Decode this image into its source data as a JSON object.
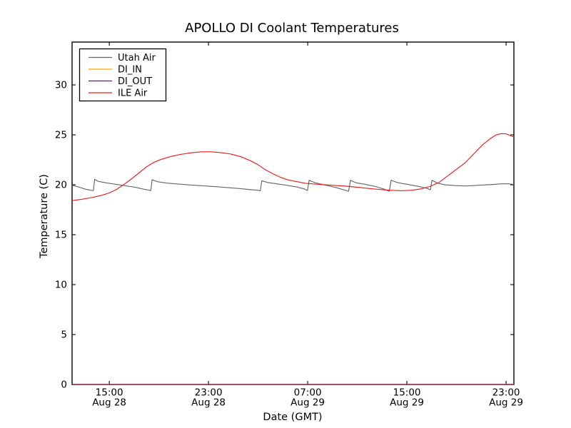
{
  "chart_data": {
    "type": "line",
    "title": "APOLLO DI Coolant Temperatures",
    "xlabel": "Date (GMT)",
    "ylabel": "Temperature (C)",
    "grid": false,
    "legend_position": "upper left",
    "x_unit": "hours since Aug 28 12:00 GMT",
    "xlim": [
      0,
      35.63
    ],
    "ylim": [
      0,
      34.29
    ],
    "y_ticks": [
      0,
      5,
      10,
      15,
      20,
      25,
      30
    ],
    "x_ticks": [
      {
        "h": 3,
        "time": "15:00",
        "date": "Aug 28"
      },
      {
        "h": 11,
        "time": "23:00",
        "date": "Aug 28"
      },
      {
        "h": 19,
        "time": "07:00",
        "date": "Aug 29"
      },
      {
        "h": 27,
        "time": "15:00",
        "date": "Aug 29"
      },
      {
        "h": 35,
        "time": "23:00",
        "date": "Aug 29"
      }
    ],
    "series": [
      {
        "name": "Utah Air",
        "color": "#666666",
        "points": [
          [
            0,
            19.95
          ],
          [
            0.6,
            19.75
          ],
          [
            1.1,
            19.55
          ],
          [
            1.5,
            19.45
          ],
          [
            1.72,
            19.42
          ],
          [
            1.82,
            20.55
          ],
          [
            2.1,
            20.35
          ],
          [
            2.7,
            20.2
          ],
          [
            3.5,
            20.05
          ],
          [
            4.3,
            19.9
          ],
          [
            5.1,
            19.75
          ],
          [
            5.8,
            19.55
          ],
          [
            6.25,
            19.45
          ],
          [
            6.35,
            19.42
          ],
          [
            6.45,
            20.5
          ],
          [
            6.9,
            20.3
          ],
          [
            7.6,
            20.18
          ],
          [
            8.5,
            20.08
          ],
          [
            9.5,
            19.98
          ],
          [
            10.5,
            19.9
          ],
          [
            11.5,
            19.82
          ],
          [
            12.5,
            19.72
          ],
          [
            13.5,
            19.62
          ],
          [
            14.3,
            19.52
          ],
          [
            15.0,
            19.45
          ],
          [
            15.18,
            19.4
          ],
          [
            15.3,
            20.4
          ],
          [
            15.8,
            20.22
          ],
          [
            16.5,
            20.1
          ],
          [
            17.3,
            19.95
          ],
          [
            18.1,
            19.78
          ],
          [
            18.7,
            19.6
          ],
          [
            18.98,
            19.42
          ],
          [
            19.12,
            20.45
          ],
          [
            19.6,
            20.2
          ],
          [
            20.3,
            20.0
          ],
          [
            21.2,
            19.75
          ],
          [
            21.9,
            19.5
          ],
          [
            22.3,
            19.35
          ],
          [
            22.45,
            20.45
          ],
          [
            22.9,
            20.2
          ],
          [
            23.6,
            20.05
          ],
          [
            24.4,
            19.85
          ],
          [
            25.2,
            19.55
          ],
          [
            25.58,
            19.35
          ],
          [
            25.73,
            20.45
          ],
          [
            26.3,
            20.2
          ],
          [
            27.0,
            20.05
          ],
          [
            27.9,
            19.85
          ],
          [
            28.6,
            19.65
          ],
          [
            28.9,
            19.5
          ],
          [
            29.02,
            20.45
          ],
          [
            29.5,
            20.15
          ],
          [
            30.1,
            20.0
          ],
          [
            30.9,
            19.92
          ],
          [
            31.8,
            19.88
          ],
          [
            32.8,
            19.95
          ],
          [
            33.8,
            20.02
          ],
          [
            34.6,
            20.1
          ],
          [
            35.2,
            20.1
          ],
          [
            35.63,
            20.03
          ]
        ]
      },
      {
        "name": "DI_IN",
        "color": "#ffa500",
        "points": [
          [
            0,
            0
          ],
          [
            35.63,
            0
          ]
        ]
      },
      {
        "name": "DI_OUT",
        "color": "#800080",
        "points": [
          [
            0,
            0
          ],
          [
            35.63,
            0
          ]
        ]
      },
      {
        "name": "ILE Air",
        "color": "#ee1c1c",
        "points": [
          [
            0,
            18.42
          ],
          [
            0.8,
            18.55
          ],
          [
            1.6,
            18.72
          ],
          [
            2.4,
            18.95
          ],
          [
            3.0,
            19.18
          ],
          [
            3.6,
            19.55
          ],
          [
            4.2,
            20.05
          ],
          [
            4.8,
            20.6
          ],
          [
            5.4,
            21.2
          ],
          [
            6.0,
            21.8
          ],
          [
            6.6,
            22.25
          ],
          [
            7.2,
            22.55
          ],
          [
            8.0,
            22.85
          ],
          [
            8.8,
            23.05
          ],
          [
            9.6,
            23.2
          ],
          [
            10.4,
            23.3
          ],
          [
            11.2,
            23.3
          ],
          [
            12.0,
            23.22
          ],
          [
            12.8,
            23.08
          ],
          [
            13.6,
            22.82
          ],
          [
            14.4,
            22.4
          ],
          [
            15.0,
            22.0
          ],
          [
            15.6,
            21.5
          ],
          [
            16.2,
            21.1
          ],
          [
            16.8,
            20.75
          ],
          [
            17.4,
            20.5
          ],
          [
            18.0,
            20.35
          ],
          [
            18.8,
            20.15
          ],
          [
            19.8,
            20.05
          ],
          [
            21.0,
            19.95
          ],
          [
            22.2,
            19.85
          ],
          [
            23.4,
            19.7
          ],
          [
            24.6,
            19.55
          ],
          [
            25.6,
            19.45
          ],
          [
            26.6,
            19.4
          ],
          [
            27.4,
            19.45
          ],
          [
            28.2,
            19.6
          ],
          [
            28.9,
            19.85
          ],
          [
            29.6,
            20.25
          ],
          [
            30.3,
            20.9
          ],
          [
            31.0,
            21.55
          ],
          [
            31.7,
            22.2
          ],
          [
            32.4,
            23.1
          ],
          [
            33.1,
            24.0
          ],
          [
            33.7,
            24.6
          ],
          [
            34.2,
            25.0
          ],
          [
            34.6,
            25.12
          ],
          [
            35.0,
            25.1
          ],
          [
            35.3,
            24.95
          ],
          [
            35.63,
            24.78
          ]
        ]
      }
    ]
  },
  "figure": {
    "background": "#ffffff",
    "spine_color": "#000000"
  }
}
